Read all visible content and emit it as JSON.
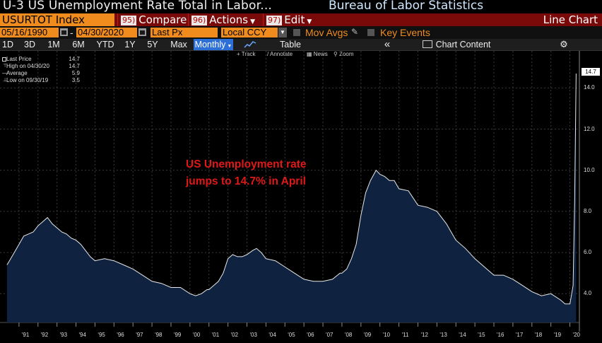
{
  "window": {
    "title": "U-3 US Unemployment Rate Total in Labor...",
    "source": "Bureau of Labor Statistics"
  },
  "command_bar": {
    "ticker": "USURTOT Index",
    "compare": {
      "num": "95)",
      "label": "Compare"
    },
    "actions": {
      "num": "96)",
      "label": "Actions"
    },
    "edit": {
      "num": "97)",
      "label": "Edit"
    },
    "view": "Line Chart"
  },
  "fields": {
    "start_date": "05/16/1990",
    "dash": "-",
    "end_date": "04/30/2020",
    "price_field": "Last Px",
    "currency": "Local CCY",
    "mov_avgs": "Mov Avgs",
    "key_events": "Key Events"
  },
  "period_bar": {
    "buttons": [
      "1D",
      "3D",
      "1M",
      "6M",
      "YTD",
      "1Y",
      "5Y",
      "Max"
    ],
    "frequency": "Monthly",
    "table": "Table",
    "collapse": "«",
    "chart_content": "Chart Content"
  },
  "tools": {
    "track": "+ Track",
    "annotate": "/ Annotate",
    "news": "News",
    "zoom": "Zoom"
  },
  "legend": [
    {
      "label": "Last Price",
      "value": "14.7"
    },
    {
      "label": "High on 04/30/20",
      "value": "14.7"
    },
    {
      "label": "Average",
      "value": "5.9"
    },
    {
      "label": "Low on 09/30/19",
      "value": "3.5"
    }
  ],
  "annotation": {
    "line1": "US Unemployment rate",
    "line2": "jumps to 14.7% in April"
  },
  "last_value_tag": "14.7",
  "colors": {
    "accent_orange": "#f08c1e",
    "command_red": "#7a0a0a",
    "area_fill": "#0f2340",
    "line": "#e8e8e8",
    "annotation_red": "#e01818",
    "active_blue": "#2c6fd6"
  },
  "chart_data": {
    "type": "area",
    "ylim": [
      2.6,
      15.8
    ],
    "yticks": [
      "4.0",
      "6.0",
      "8.0",
      "10.0",
      "12.0",
      "14.0"
    ],
    "xticks": [
      "'91",
      "'92",
      "'93",
      "'94",
      "'95",
      "'96",
      "'97",
      "'98",
      "'99",
      "'00",
      "'01",
      "'02",
      "'03",
      "'04",
      "'05",
      "'06",
      "'07",
      "'08",
      "'09",
      "'10",
      "'11",
      "'12",
      "'13",
      "'14",
      "'15",
      "'16",
      "'17",
      "'18",
      "'19",
      "'20"
    ],
    "series": [
      {
        "x": [
          1990.37,
          1990.5,
          1990.75,
          1991.0,
          1991.25,
          1991.5,
          1991.75,
          1992.0,
          1992.25,
          1992.5,
          1992.75,
          1993.0,
          1993.25,
          1993.5,
          1993.75,
          1994.0,
          1994.25,
          1994.5,
          1994.75,
          1995.0,
          1995.5,
          1996.0,
          1996.5,
          1997.0,
          1997.5,
          1998.0,
          1998.5,
          1999.0,
          1999.5,
          2000.0,
          2000.3,
          2000.6,
          2000.9,
          2001.0,
          2001.25,
          2001.5,
          2001.75,
          2002.0,
          2002.25,
          2002.5,
          2002.75,
          2003.0,
          2003.3,
          2003.5,
          2003.75,
          2004.0,
          2004.5,
          2005.0,
          2005.5,
          2006.0,
          2006.5,
          2007.0,
          2007.5,
          2007.9,
          2008.0,
          2008.25,
          2008.5,
          2008.75,
          2009.0,
          2009.25,
          2009.5,
          2009.8,
          2010.0,
          2010.25,
          2010.5,
          2010.75,
          2011.0,
          2011.5,
          2012.0,
          2012.5,
          2013.0,
          2013.5,
          2014.0,
          2014.5,
          2015.0,
          2015.5,
          2016.0,
          2016.5,
          2017.0,
          2017.5,
          2018.0,
          2018.5,
          2019.0,
          2019.5,
          2019.75,
          2020.0,
          2020.17,
          2020.25,
          2020.33
        ],
        "values": [
          5.4,
          5.6,
          6.0,
          6.4,
          6.8,
          6.9,
          7.0,
          7.3,
          7.5,
          7.7,
          7.4,
          7.2,
          7.0,
          6.9,
          6.7,
          6.6,
          6.4,
          6.1,
          5.8,
          5.6,
          5.7,
          5.6,
          5.4,
          5.2,
          4.9,
          4.6,
          4.5,
          4.3,
          4.3,
          4.0,
          3.9,
          4.0,
          4.2,
          4.2,
          4.4,
          4.6,
          5.0,
          5.7,
          5.9,
          5.8,
          5.8,
          5.9,
          6.1,
          6.2,
          6.0,
          5.7,
          5.6,
          5.3,
          5.0,
          4.7,
          4.6,
          4.6,
          4.7,
          5.0,
          5.0,
          5.2,
          5.7,
          6.4,
          7.8,
          8.9,
          9.5,
          10.0,
          9.8,
          9.7,
          9.5,
          9.5,
          9.1,
          9.0,
          8.3,
          8.2,
          8.0,
          7.4,
          6.6,
          6.2,
          5.7,
          5.3,
          4.9,
          4.9,
          4.7,
          4.4,
          4.1,
          3.9,
          4.0,
          3.7,
          3.5,
          3.5,
          4.4,
          8.5,
          14.7
        ]
      }
    ]
  }
}
